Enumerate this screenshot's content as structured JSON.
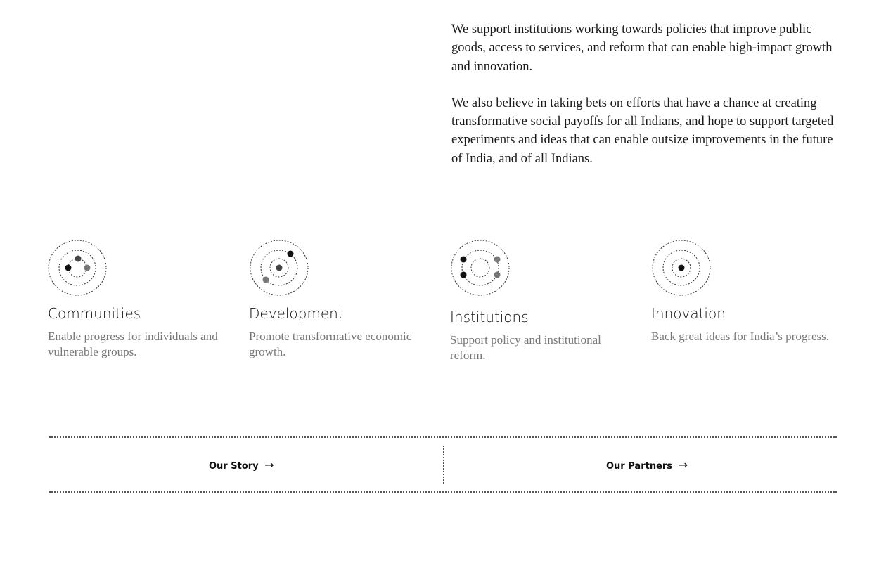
{
  "intro": {
    "paragraphs": [
      "We support institutions working towards policies that improve public goods, access to services, and reform that can enable high-impact growth and innovation.",
      "We also believe in taking bets on efforts that have a chance at creating transformative social payoffs for all Indians, and hope to support targeted experiments and ideas that can enable outsize improvements in the future of India, and of all Indians."
    ]
  },
  "pillars": [
    {
      "title": "Communities",
      "description": "Enable progress for individuals and vulnerable groups.",
      "icon": "orbit-communities-icon"
    },
    {
      "title": "Development",
      "description": "Promote transformative economic growth.",
      "icon": "orbit-development-icon"
    },
    {
      "title": "Institutions",
      "description": "Support policy and institutional reform.",
      "icon": "orbit-institutions-icon"
    },
    {
      "title": "Innovation",
      "description": "Back great ideas for India’s progress.",
      "icon": "orbit-innovation-icon"
    }
  ],
  "links": {
    "story": "Our Story",
    "partners": "Our Partners",
    "arrow": "→"
  }
}
